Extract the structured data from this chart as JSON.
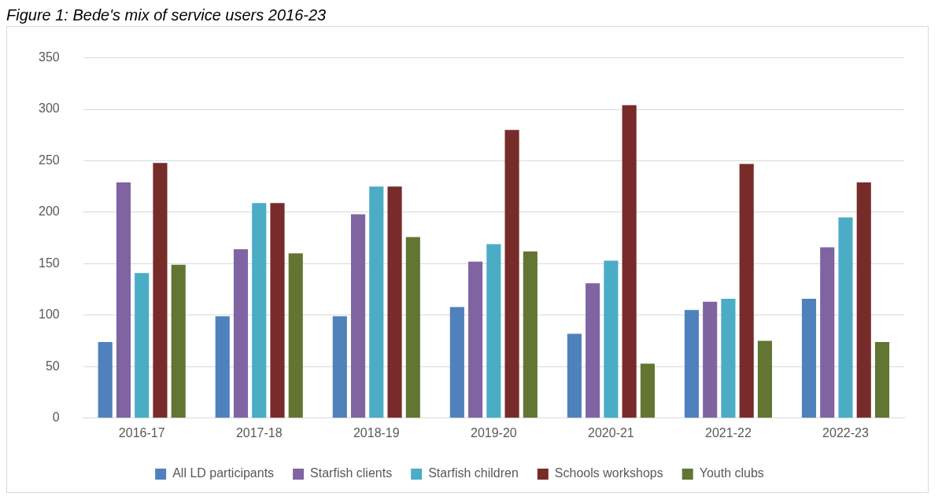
{
  "chart_data": {
    "type": "bar",
    "title": "Figure 1: Bede's mix of service users 2016-23",
    "categories": [
      "2016-17",
      "2017-18",
      "2018-19",
      "2019-20",
      "2020-21",
      "2021-22",
      "2022-23"
    ],
    "series": [
      {
        "name": "All LD participants",
        "color": "#4f81bd",
        "values": [
          74,
          99,
          99,
          108,
          82,
          105,
          116
        ]
      },
      {
        "name": "Starfish clients",
        "color": "#8064a2",
        "values": [
          229,
          164,
          198,
          152,
          131,
          113,
          166
        ]
      },
      {
        "name": "Starfish children",
        "color": "#4bacc6",
        "values": [
          141,
          209,
          225,
          169,
          153,
          116,
          195
        ]
      },
      {
        "name": "Schools workshops",
        "color": "#772c2a",
        "values": [
          248,
          209,
          225,
          280,
          304,
          247,
          229
        ]
      },
      {
        "name": "Youth clubs",
        "color": "#637532",
        "values": [
          149,
          160,
          176,
          162,
          53,
          75,
          74
        ]
      }
    ],
    "ylim": [
      0,
      350
    ],
    "yticks": [
      0,
      50,
      100,
      150,
      200,
      250,
      300,
      350
    ],
    "grid": "y",
    "legend": "bottom"
  }
}
